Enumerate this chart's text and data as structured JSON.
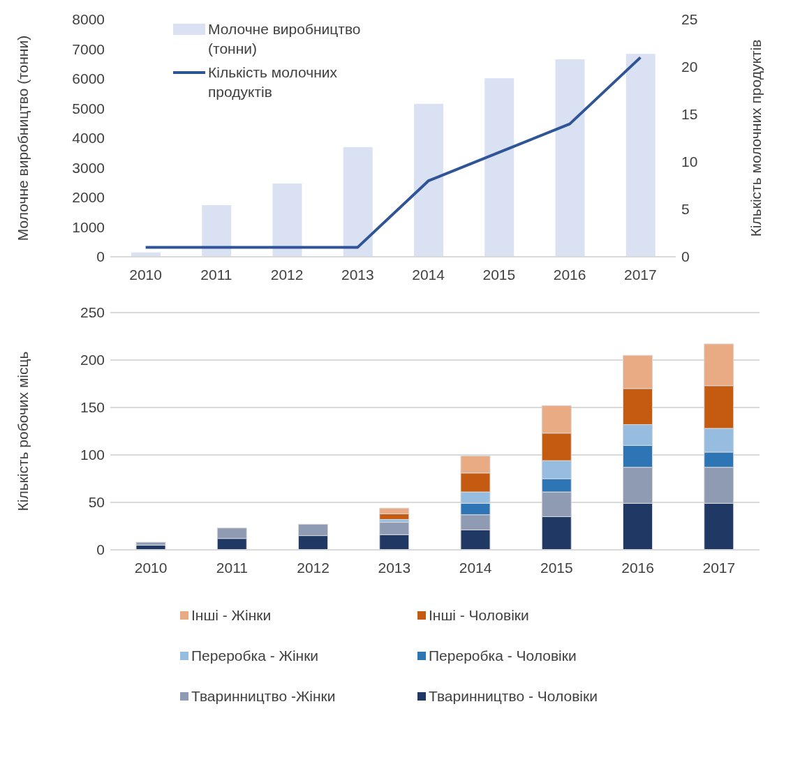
{
  "chart_data": [
    {
      "type": "bar",
      "categories": [
        "2010",
        "2011",
        "2012",
        "2013",
        "2014",
        "2015",
        "2016",
        "2017"
      ],
      "ylabel": "Молочне виробництво (тонни)",
      "y2label": "Кількість молочних продуктів",
      "ylim": [
        0,
        8000
      ],
      "yticks": [
        0,
        1000,
        2000,
        3000,
        4000,
        5000,
        6000,
        7000,
        8000
      ],
      "y2lim": [
        0,
        25
      ],
      "y2ticks": [
        0,
        5,
        10,
        15,
        20,
        25
      ],
      "grid": false,
      "legend": "top left",
      "series": [
        {
          "name": "Молочне виробництво (тонни)",
          "type": "bar",
          "color": "#d9e1f2",
          "values": [
            150,
            1740,
            2470,
            3700,
            5160,
            6020,
            6660,
            6840
          ]
        },
        {
          "name": "Кількість молочних продуктів",
          "type": "line",
          "axis": "y2",
          "color": "#2f5597",
          "values": [
            1,
            1,
            1,
            1,
            8,
            11,
            14,
            21
          ]
        }
      ]
    },
    {
      "type": "bar",
      "stacked": true,
      "categories": [
        "2010",
        "2011",
        "2012",
        "2013",
        "2014",
        "2015",
        "2016",
        "2017"
      ],
      "ylabel": "Кількість робочих місць",
      "ylim": [
        0,
        250
      ],
      "yticks": [
        0,
        50,
        100,
        150,
        200,
        250
      ],
      "grid": "y",
      "legend": "bottom",
      "series": [
        {
          "name": "Тваринництво - Чоловіки",
          "color": "#203864",
          "values": [
            5,
            12,
            15,
            16,
            21,
            35,
            49,
            49
          ]
        },
        {
          "name": "Тваринництво -Жінки",
          "color": "#8f9bb3",
          "values": [
            3,
            11,
            12,
            13,
            16,
            26,
            38,
            38
          ]
        },
        {
          "name": "Переробка - Чоловіки",
          "color": "#2e75b6",
          "values": [
            0,
            0,
            0,
            0,
            12,
            14,
            23,
            16
          ]
        },
        {
          "name": "Переробка - Жінки",
          "color": "#96bde0",
          "values": [
            0,
            0,
            0,
            3,
            12,
            19,
            22,
            25
          ]
        },
        {
          "name": "Інші - Чоловіки",
          "color": "#c55a11",
          "values": [
            0,
            0,
            0,
            6,
            20,
            29,
            38,
            45
          ]
        },
        {
          "name": "Інші - Жінки",
          "color": "#e8ab84",
          "values": [
            0,
            0,
            0,
            6,
            18,
            29,
            35,
            44
          ]
        }
      ]
    }
  ]
}
